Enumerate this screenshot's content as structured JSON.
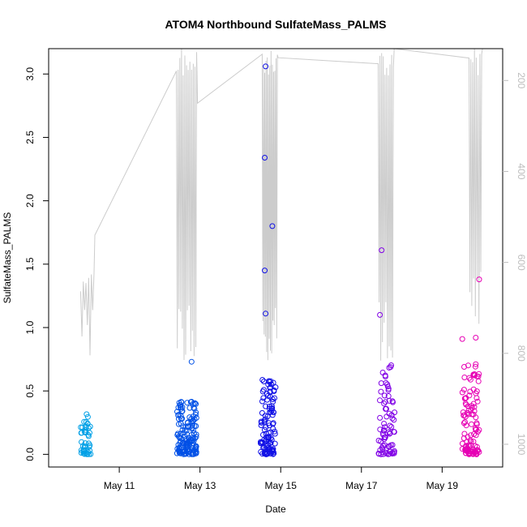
{
  "chart_data": {
    "type": "scatter",
    "title": "ATOM4 Northbound SulfateMass_PALMS",
    "xlabel": "Date",
    "ylabel": "SulfateMass_PALMS",
    "xlim": [
      "2018-05-09 06:00",
      "2018-05-20 12:00"
    ],
    "ylim": [
      -0.1,
      3.2
    ],
    "y2lim": [
      1050,
      130
    ],
    "x_ticks": [
      {
        "date": "2018-05-11",
        "label": "May 11"
      },
      {
        "date": "2018-05-13",
        "label": "May 13"
      },
      {
        "date": "2018-05-15",
        "label": "May 15"
      },
      {
        "date": "2018-05-17",
        "label": "May 17"
      },
      {
        "date": "2018-05-19",
        "label": "May 19"
      }
    ],
    "y_ticks": [
      "0.0",
      "0.5",
      "1.0",
      "1.5",
      "2.0",
      "2.5",
      "3.0"
    ],
    "y2_ticks": [
      "200",
      "400",
      "600",
      "800",
      "1000"
    ],
    "grid": false,
    "point_colors": [
      "#00a0e6",
      "#0050e6",
      "#1010e6",
      "#8000e6",
      "#e600b4"
    ],
    "pressure_color": "#cccccc",
    "flight_days": [
      "2018-05-10",
      "2018-05-12",
      "2018-05-14",
      "2018-05-17",
      "2018-05-19"
    ],
    "notable_points": [
      {
        "date": "2018-05-14 15:00",
        "y": 3.06
      },
      {
        "date": "2018-05-14 14:30",
        "y": 2.34
      },
      {
        "date": "2018-05-14 19:00",
        "y": 1.8
      },
      {
        "date": "2018-05-14 14:30",
        "y": 1.45
      },
      {
        "date": "2018-05-14 15:00",
        "y": 1.11
      },
      {
        "date": "2018-05-17 12:00",
        "y": 1.61
      },
      {
        "date": "2018-05-17 11:00",
        "y": 1.1
      },
      {
        "date": "2018-05-19 22:00",
        "y": 1.38
      },
      {
        "date": "2018-05-12 19:00",
        "y": 0.73
      },
      {
        "date": "2018-05-19 12:00",
        "y": 0.91
      },
      {
        "date": "2018-05-19 20:00",
        "y": 0.92
      }
    ]
  }
}
